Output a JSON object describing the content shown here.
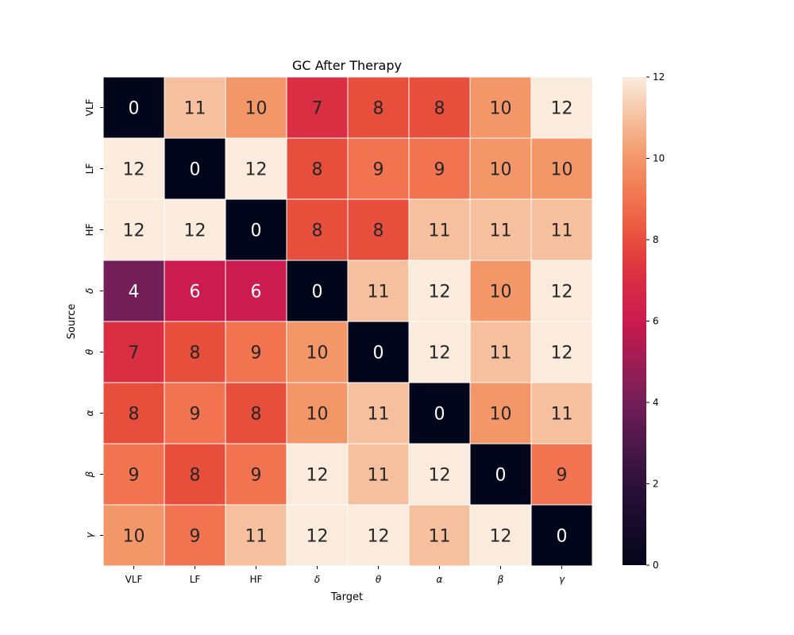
{
  "chart_data": {
    "type": "heatmap",
    "title": "GC After Therapy",
    "xlabel": "Target",
    "ylabel": "Source",
    "x_categories": [
      "VLF",
      "LF",
      "HF",
      "δ",
      "θ",
      "α",
      "β",
      "γ"
    ],
    "y_categories": [
      "VLF",
      "LF",
      "HF",
      "δ",
      "θ",
      "α",
      "β",
      "γ"
    ],
    "values": [
      [
        0,
        11,
        10,
        7,
        8,
        8,
        10,
        12
      ],
      [
        12,
        0,
        12,
        8,
        9,
        9,
        10,
        10
      ],
      [
        12,
        12,
        0,
        8,
        8,
        11,
        11,
        11
      ],
      [
        4,
        6,
        6,
        0,
        11,
        12,
        10,
        12
      ],
      [
        7,
        8,
        9,
        10,
        0,
        12,
        11,
        12
      ],
      [
        8,
        9,
        8,
        10,
        11,
        0,
        10,
        11
      ],
      [
        9,
        8,
        9,
        12,
        11,
        12,
        0,
        9
      ],
      [
        10,
        9,
        11,
        12,
        12,
        11,
        12,
        0
      ]
    ],
    "colorbar": {
      "range": [
        0,
        12
      ],
      "ticks": [
        "0",
        "2",
        "4",
        "6",
        "8",
        "10",
        "12"
      ],
      "colormap": "rocket"
    },
    "annotated": true
  }
}
